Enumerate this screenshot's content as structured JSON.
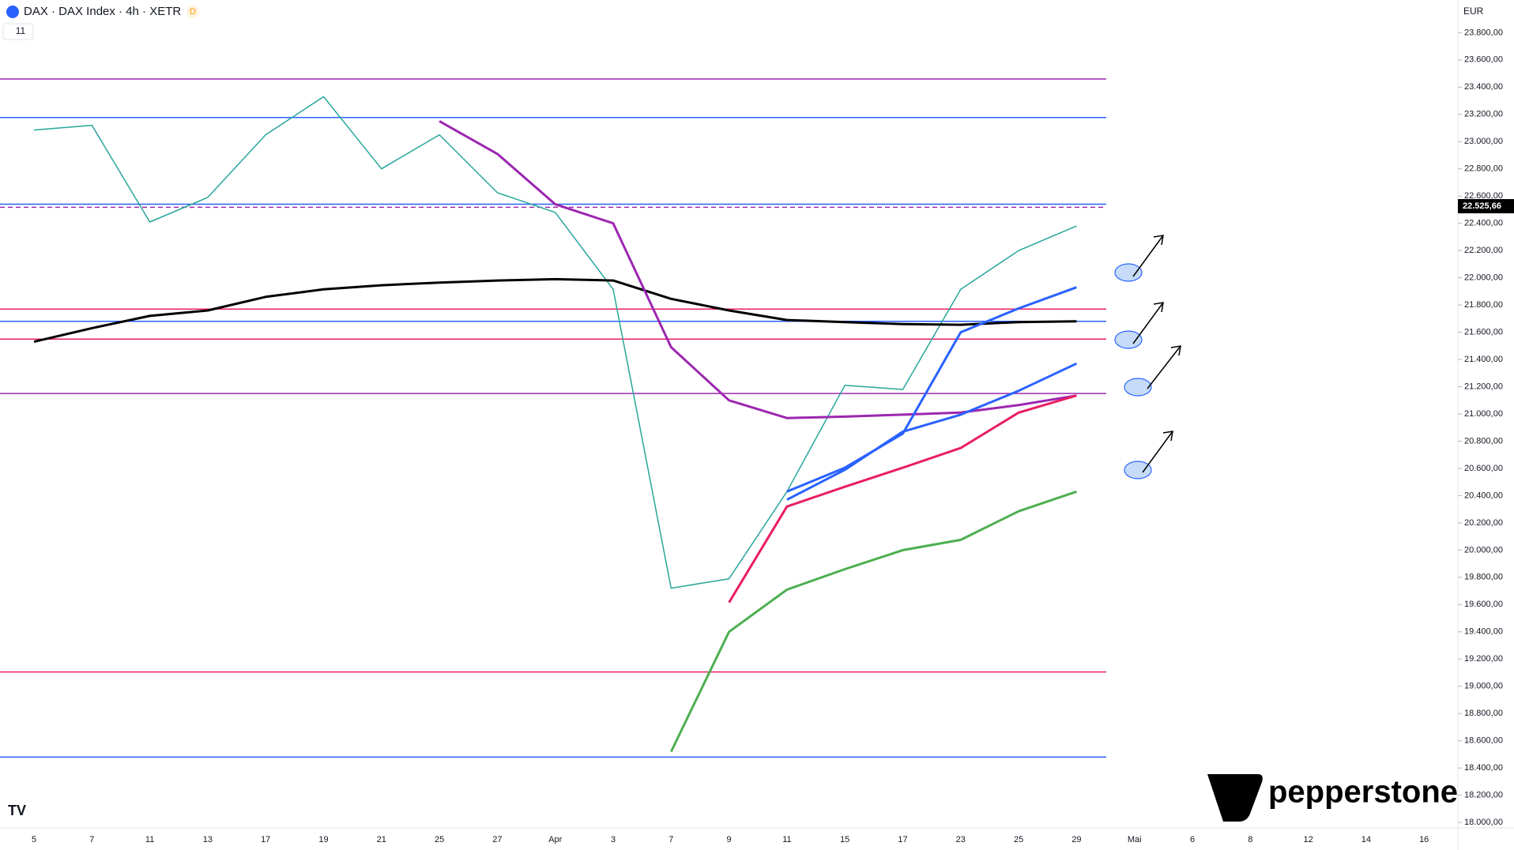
{
  "header": {
    "symbol": "DAX · DAX Index · 4h · XETR",
    "badge": "D",
    "indicator_count": "11",
    "currency": "EUR",
    "brand": "pepperstone"
  },
  "chart_data": {
    "type": "line",
    "categories": [
      "5",
      "7",
      "11",
      "13",
      "17",
      "19",
      "21",
      "25",
      "27",
      "Apr",
      "3",
      "7",
      "9",
      "11",
      "15",
      "17",
      "23",
      "25",
      "29",
      "Mai",
      "6",
      "8",
      "12",
      "14",
      "16"
    ],
    "ylim": [
      17960,
      24040
    ],
    "yticks": [
      {
        "value": 18000,
        "label": "18.000,00"
      },
      {
        "value": 18200,
        "label": "18.200,00"
      },
      {
        "value": 18400,
        "label": "18.400,00"
      },
      {
        "value": 18600,
        "label": "18.600,00"
      },
      {
        "value": 18800,
        "label": "18.800,00"
      },
      {
        "value": 19000,
        "label": "19.000,00"
      },
      {
        "value": 19200,
        "label": "19.200,00"
      },
      {
        "value": 19400,
        "label": "19.400,00"
      },
      {
        "value": 19600,
        "label": "19.600,00"
      },
      {
        "value": 19800,
        "label": "19.800,00"
      },
      {
        "value": 20000,
        "label": "20.000,00"
      },
      {
        "value": 20200,
        "label": "20.200,00"
      },
      {
        "value": 20400,
        "label": "20.400,00"
      },
      {
        "value": 20600,
        "label": "20.600,00"
      },
      {
        "value": 20800,
        "label": "20.800,00"
      },
      {
        "value": 21000,
        "label": "21.000,00"
      },
      {
        "value": 21200,
        "label": "21.200,00"
      },
      {
        "value": 21400,
        "label": "21.400,00"
      },
      {
        "value": 21600,
        "label": "21.600,00"
      },
      {
        "value": 21800,
        "label": "21.800,00"
      },
      {
        "value": 22000,
        "label": "22.000,00"
      },
      {
        "value": 22200,
        "label": "22.200,00"
      },
      {
        "value": 22400,
        "label": "22.400,00"
      },
      {
        "value": 22600,
        "label": "22.600,00"
      },
      {
        "value": 22800,
        "label": "22.800,00"
      },
      {
        "value": 23000,
        "label": "23.000,00"
      },
      {
        "value": 23200,
        "label": "23.200,00"
      },
      {
        "value": 23400,
        "label": "23.400,00"
      },
      {
        "value": 23600,
        "label": "23.600,00"
      },
      {
        "value": 23800,
        "label": "23.800,00"
      }
    ],
    "last_price": {
      "value": 22525.66,
      "label": "22.525,66"
    },
    "levels": [
      {
        "value": 23460,
        "color": "#9c27b0"
      },
      {
        "value": 23177,
        "color": "#2962ff"
      },
      {
        "value": 22518,
        "color": "#9c27b0",
        "dashed": true
      },
      {
        "value": 22540,
        "color": "#2962ff"
      },
      {
        "value": 21550,
        "color": "#e91e63"
      },
      {
        "value": 21150,
        "color": "#9c27b0"
      },
      {
        "value": 21770,
        "color": "#e91e63"
      },
      {
        "value": 21680,
        "color": "#2962ff"
      },
      {
        "value": 19105,
        "color": "#e91e63"
      },
      {
        "value": 18480,
        "color": "#2962ff"
      }
    ],
    "series": [
      {
        "color": "#26a69a",
        "width": 1.5,
        "values": [
          23085,
          23120,
          22410,
          22590,
          23050,
          23330,
          22800,
          23050,
          22625,
          22480,
          21915,
          19720,
          19790,
          20430,
          21210,
          21180,
          21915,
          22200,
          22380,
          null,
          null,
          null,
          null,
          null,
          null
        ]
      },
      {
        "color": "#000000",
        "width": 3,
        "values": [
          21530,
          21630,
          21720,
          21760,
          21860,
          21915,
          21945,
          21965,
          21980,
          21990,
          21980,
          21845,
          21760,
          21690,
          21675,
          21660,
          21655,
          21675,
          21680,
          null,
          null,
          null,
          null,
          null,
          null
        ]
      },
      {
        "color": "#9c27b0",
        "width": 3,
        "values": [
          null,
          null,
          null,
          null,
          null,
          null,
          null,
          23150,
          22910,
          22540,
          22400,
          21490,
          21100,
          20970,
          20980,
          20995,
          21010,
          21065,
          21135,
          null,
          null,
          null,
          null,
          null,
          null
        ]
      },
      {
        "color": "#2962ff",
        "width": 3,
        "values": [
          null,
          null,
          null,
          null,
          null,
          null,
          null,
          null,
          null,
          null,
          null,
          null,
          null,
          20430,
          20605,
          20855,
          21600,
          21775,
          21930,
          null,
          null,
          null,
          null,
          null,
          null
        ]
      },
      {
        "color": "#2962ff",
        "width": 3,
        "values": [
          null,
          null,
          null,
          null,
          null,
          null,
          null,
          null,
          null,
          null,
          null,
          null,
          null,
          20370,
          20590,
          20870,
          20995,
          21170,
          21370,
          null,
          null,
          null,
          null,
          null,
          null
        ]
      },
      {
        "color": "#e91e63",
        "width": 3,
        "values": [
          null,
          null,
          null,
          null,
          null,
          null,
          null,
          null,
          null,
          null,
          null,
          null,
          19615,
          20320,
          20465,
          20605,
          20750,
          21010,
          21135,
          null,
          null,
          null,
          null,
          null,
          null
        ]
      },
      {
        "color": "#4caf50",
        "width": 3,
        "values": [
          null,
          null,
          null,
          null,
          null,
          null,
          null,
          null,
          null,
          null,
          null,
          18520,
          19400,
          19710,
          19860,
          20000,
          20075,
          20285,
          20430,
          null,
          null,
          null,
          null,
          null,
          null
        ]
      }
    ]
  }
}
